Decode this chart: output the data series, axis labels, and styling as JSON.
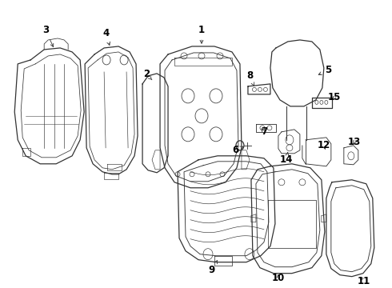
{
  "bg_color": "#ffffff",
  "line_color": "#333333",
  "text_color": "#000000",
  "lw": 0.9,
  "label_fontsize": 8.5
}
